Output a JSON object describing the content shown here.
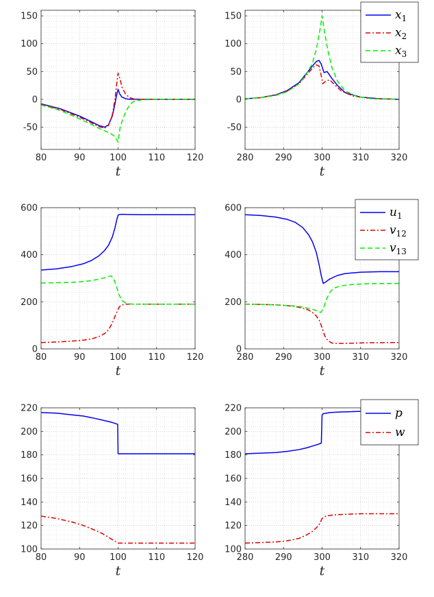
{
  "colors": {
    "blue": "#0000ee",
    "red": "#dd0000",
    "green": "#00ee00",
    "grid": "#cccccc",
    "axis": "#262626"
  },
  "chart_data": [
    {
      "type": "line",
      "xlabel": "t",
      "xlim": [
        80,
        120
      ],
      "ylim": [
        -90,
        160
      ],
      "xticks": [
        80,
        90,
        100,
        110,
        120
      ],
      "yticks": [
        -50,
        0,
        50,
        100,
        150
      ],
      "grid": true,
      "series": [
        {
          "name": "",
          "color": "blue",
          "dash": "solid",
          "x": [
            80,
            85,
            90,
            93,
            95,
            96.5,
            97.5,
            98.5,
            99.2,
            99.6,
            100,
            100.4,
            101,
            102,
            103,
            105,
            110,
            120
          ],
          "y": [
            -8,
            -17,
            -30,
            -40,
            -47,
            -50,
            -46,
            -30,
            -8,
            7,
            18,
            10,
            4,
            1,
            0,
            0,
            0,
            0
          ]
        },
        {
          "name": "",
          "color": "red",
          "dash": "dashdot",
          "x": [
            80,
            85,
            90,
            93,
            95,
            96.5,
            97.5,
            98.5,
            99.2,
            99.6,
            100,
            100.5,
            101,
            102,
            103,
            104,
            106,
            110,
            120
          ],
          "y": [
            -9,
            -18,
            -32,
            -42,
            -49,
            -52,
            -47,
            -28,
            0,
            25,
            47,
            37,
            22,
            9,
            3,
            1,
            0,
            0,
            0
          ]
        },
        {
          "name": "",
          "color": "green",
          "dash": "dash",
          "x": [
            80,
            85,
            90,
            93,
            95,
            97,
            98,
            99,
            99.6,
            100,
            100.5,
            101,
            102,
            103,
            104,
            106,
            110,
            120
          ],
          "y": [
            -10,
            -20,
            -35,
            -45,
            -52,
            -58,
            -61,
            -66,
            -72,
            -77,
            -52,
            -40,
            -22,
            -10,
            -4,
            -1,
            0,
            0
          ]
        }
      ]
    },
    {
      "type": "line",
      "xlabel": "t",
      "xlim": [
        280,
        320
      ],
      "ylim": [
        -90,
        160
      ],
      "xticks": [
        280,
        290,
        300,
        310,
        320
      ],
      "yticks": [
        -50,
        0,
        50,
        100,
        150
      ],
      "grid": true,
      "legend": {
        "position": "top-right",
        "labels": [
          [
            "x",
            "1"
          ],
          [
            "x",
            "2"
          ],
          [
            "x",
            "3"
          ]
        ]
      },
      "series": [
        {
          "name": "x1",
          "color": "blue",
          "dash": "solid",
          "x": [
            280,
            284,
            288,
            291,
            294,
            296,
            297.5,
            298.5,
            299.2,
            299.8,
            300.5,
            301.3,
            302.5,
            304,
            306,
            310,
            315,
            320
          ],
          "y": [
            1,
            3,
            8,
            16,
            30,
            47,
            60,
            68,
            70,
            63,
            48,
            50,
            38,
            25,
            12,
            4,
            1,
            0
          ]
        },
        {
          "name": "x2",
          "color": "red",
          "dash": "dashdot",
          "x": [
            280,
            284,
            288,
            291,
            294,
            296,
            297.5,
            298.5,
            299.2,
            299.7,
            300.2,
            301,
            302,
            303,
            305,
            308,
            312,
            320
          ],
          "y": [
            1,
            3,
            8,
            15,
            28,
            44,
            56,
            62,
            60,
            45,
            28,
            33,
            35,
            28,
            15,
            6,
            2,
            0
          ]
        },
        {
          "name": "x3",
          "color": "green",
          "dash": "dash",
          "x": [
            280,
            284,
            288,
            291,
            294,
            296,
            297.5,
            298.5,
            299.3,
            300,
            300.7,
            301.5,
            302.5,
            304,
            306,
            309,
            313,
            320
          ],
          "y": [
            1,
            3,
            7,
            14,
            28,
            46,
            65,
            90,
            118,
            150,
            118,
            88,
            58,
            33,
            15,
            5,
            1,
            0
          ]
        }
      ]
    },
    {
      "type": "line",
      "xlabel": "t",
      "xlim": [
        80,
        120
      ],
      "ylim": [
        0,
        600
      ],
      "xticks": [
        80,
        90,
        100,
        110,
        120
      ],
      "yticks": [
        0,
        200,
        400,
        600
      ],
      "grid": true,
      "series": [
        {
          "name": "",
          "color": "blue",
          "dash": "solid",
          "x": [
            80,
            84,
            88,
            91,
            93,
            95,
            96.5,
            97.5,
            98.5,
            99.2,
            99.7,
            100,
            100.3,
            101,
            103,
            106,
            110,
            120
          ],
          "y": [
            335,
            340,
            350,
            362,
            375,
            395,
            418,
            440,
            475,
            515,
            552,
            568,
            571,
            572,
            571,
            570,
            570,
            570
          ]
        },
        {
          "name": "",
          "color": "red",
          "dash": "dashdot",
          "x": [
            80,
            84,
            88,
            91,
            93,
            95,
            96.5,
            97.5,
            98.5,
            99.5,
            100.3,
            101,
            102,
            103,
            105,
            110,
            120
          ],
          "y": [
            27,
            29,
            33,
            37,
            42,
            52,
            65,
            80,
            110,
            150,
            178,
            187,
            190,
            190,
            190,
            190,
            190
          ]
        },
        {
          "name": "",
          "color": "green",
          "dash": "dash",
          "x": [
            80,
            84,
            88,
            91,
            93,
            95,
            96.5,
            97.5,
            98.2,
            98.8,
            99.5,
            100.2,
            101,
            102,
            103,
            105,
            110,
            120
          ],
          "y": [
            280,
            281,
            283,
            286,
            290,
            296,
            302,
            308,
            310,
            300,
            270,
            232,
            205,
            195,
            191,
            190,
            190,
            190
          ]
        }
      ]
    },
    {
      "type": "line",
      "xlabel": "t",
      "xlim": [
        280,
        320
      ],
      "ylim": [
        0,
        600
      ],
      "xticks": [
        280,
        290,
        300,
        310,
        320
      ],
      "yticks": [
        0,
        200,
        400,
        600
      ],
      "grid": true,
      "legend": {
        "position": "top-right",
        "labels": [
          [
            "u",
            "1"
          ],
          [
            "v",
            "12"
          ],
          [
            "v",
            "13"
          ]
        ]
      },
      "series": [
        {
          "name": "u1",
          "color": "blue",
          "dash": "solid",
          "x": [
            280,
            284,
            288,
            291,
            293,
            295,
            296.5,
            297.5,
            298.5,
            299.2,
            299.8,
            300.3,
            301,
            302,
            304,
            306,
            310,
            315,
            320
          ],
          "y": [
            570,
            567,
            560,
            550,
            538,
            515,
            485,
            455,
            410,
            360,
            310,
            278,
            285,
            297,
            312,
            320,
            326,
            328,
            328
          ]
        },
        {
          "name": "v12",
          "color": "red",
          "dash": "dashdot",
          "x": [
            280,
            284,
            288,
            291,
            293,
            295,
            296.5,
            297.5,
            298.5,
            299.3,
            300,
            300.7,
            301.5,
            302.5,
            304,
            307,
            312,
            320
          ],
          "y": [
            190,
            189,
            187,
            184,
            180,
            173,
            165,
            155,
            140,
            120,
            90,
            55,
            35,
            25,
            23,
            24,
            26,
            27
          ]
        },
        {
          "name": "v13",
          "color": "green",
          "dash": "dash",
          "x": [
            280,
            284,
            288,
            291,
            293,
            295,
            296.5,
            297.5,
            298.5,
            299.2,
            299.7,
            300.3,
            301,
            302,
            303,
            305,
            308,
            312,
            320
          ],
          "y": [
            190,
            189,
            187,
            184,
            182,
            178,
            172,
            168,
            163,
            158,
            155,
            170,
            205,
            240,
            258,
            268,
            274,
            277,
            278
          ]
        }
      ]
    },
    {
      "type": "line",
      "xlabel": "t",
      "xlim": [
        80,
        120
      ],
      "ylim": [
        100,
        220
      ],
      "xticks": [
        80,
        90,
        100,
        110,
        120
      ],
      "yticks": [
        100,
        120,
        140,
        160,
        180,
        200,
        220
      ],
      "grid": true,
      "series": [
        {
          "name": "",
          "color": "blue",
          "dash": "solid",
          "x": [
            80,
            84,
            88,
            91,
            94,
            96,
            98,
            99,
            99.9,
            100,
            100.1,
            105,
            110,
            120
          ],
          "y": [
            216,
            215.5,
            214,
            213,
            211,
            209.5,
            208,
            207,
            206,
            181,
            181,
            181,
            181,
            181
          ]
        },
        {
          "name": "",
          "color": "red",
          "dash": "dashdot",
          "x": [
            80,
            84,
            88,
            91,
            94,
            96,
            98,
            99,
            100,
            101,
            105,
            110,
            120
          ],
          "y": [
            128,
            126,
            123,
            120,
            116,
            113,
            109,
            107,
            105,
            105,
            105,
            105,
            105
          ]
        }
      ]
    },
    {
      "type": "line",
      "xlabel": "t",
      "xlim": [
        280,
        320
      ],
      "ylim": [
        100,
        220
      ],
      "xticks": [
        280,
        290,
        300,
        310,
        320
      ],
      "yticks": [
        100,
        120,
        140,
        160,
        180,
        200,
        220
      ],
      "grid": true,
      "legend": {
        "position": "top-right",
        "labels": [
          [
            "p",
            ""
          ],
          [
            "w",
            ""
          ]
        ]
      },
      "series": [
        {
          "name": "p",
          "color": "blue",
          "dash": "solid",
          "x": [
            280,
            284,
            288,
            291,
            294,
            296,
            298,
            299,
            299.8,
            300,
            300.3,
            302,
            305,
            310,
            320
          ],
          "y": [
            181,
            181.5,
            182,
            183,
            184.5,
            186,
            188,
            189,
            190,
            214,
            215,
            216,
            216.5,
            217,
            217
          ]
        },
        {
          "name": "w",
          "color": "red",
          "dash": "dashdot",
          "x": [
            280,
            284,
            288,
            291,
            294,
            296,
            297.5,
            298.5,
            299.3,
            300,
            301,
            303,
            306,
            310,
            320
          ],
          "y": [
            105,
            105.5,
            106,
            107,
            109,
            112,
            115,
            118,
            121,
            126,
            128,
            129,
            129.5,
            130,
            130
          ]
        }
      ]
    }
  ]
}
